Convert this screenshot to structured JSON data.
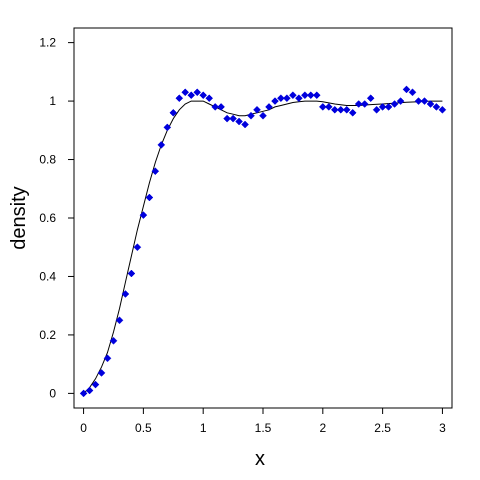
{
  "chart_data": {
    "type": "scatter",
    "xlabel": "x",
    "ylabel": "density",
    "xlim": [
      -0.08,
      3.08
    ],
    "ylim": [
      -0.05,
      1.25
    ],
    "xticks": [
      0,
      0.5,
      1,
      1.5,
      2,
      2.5,
      3
    ],
    "xtick_labels": [
      "0",
      "0.5",
      "1",
      "1.5",
      "2",
      "2.5",
      "3"
    ],
    "yticks": [
      0,
      0.2,
      0.4,
      0.6,
      0.8,
      1,
      1.2
    ],
    "ytick_labels": [
      "0",
      "0.2",
      "0.4",
      "0.6",
      "0.8",
      "1",
      "1.2"
    ],
    "grid": false,
    "legend": "none",
    "series": [
      {
        "kind": "points",
        "color": "#0000dd",
        "marker": "diamond",
        "x": [
          0.0,
          0.05,
          0.1,
          0.15,
          0.2,
          0.25,
          0.3,
          0.35,
          0.4,
          0.45,
          0.5,
          0.55,
          0.6,
          0.65,
          0.7,
          0.75,
          0.8,
          0.85,
          0.9,
          0.95,
          1.0,
          1.05,
          1.1,
          1.15,
          1.2,
          1.25,
          1.3,
          1.35,
          1.4,
          1.45,
          1.5,
          1.55,
          1.6,
          1.65,
          1.7,
          1.75,
          1.8,
          1.85,
          1.9,
          1.95,
          2.0,
          2.05,
          2.1,
          2.15,
          2.2,
          2.25,
          2.3,
          2.35,
          2.4,
          2.45,
          2.5,
          2.55,
          2.6,
          2.65,
          2.7,
          2.75,
          2.8,
          2.85,
          2.9,
          2.95,
          3.0
        ],
        "y": [
          0.0,
          0.01,
          0.03,
          0.07,
          0.12,
          0.18,
          0.25,
          0.34,
          0.41,
          0.5,
          0.61,
          0.67,
          0.76,
          0.85,
          0.91,
          0.96,
          1.01,
          1.03,
          1.02,
          1.03,
          1.02,
          1.01,
          0.98,
          0.98,
          0.94,
          0.94,
          0.93,
          0.92,
          0.95,
          0.97,
          0.95,
          0.98,
          1.0,
          1.01,
          1.01,
          1.02,
          1.01,
          1.02,
          1.02,
          1.02,
          0.98,
          0.98,
          0.97,
          0.97,
          0.97,
          0.96,
          0.99,
          0.99,
          1.01,
          0.97,
          0.98,
          0.98,
          0.99,
          1.0,
          1.04,
          1.03,
          1.0,
          1.0,
          0.99,
          0.98,
          0.97
        ]
      },
      {
        "kind": "line",
        "color": "#000000",
        "x": [
          0.0,
          0.05,
          0.1,
          0.15,
          0.2,
          0.25,
          0.3,
          0.35,
          0.4,
          0.45,
          0.5,
          0.55,
          0.6,
          0.65,
          0.7,
          0.75,
          0.8,
          0.85,
          0.9,
          0.95,
          1.0,
          1.05,
          1.1,
          1.15,
          1.2,
          1.25,
          1.3,
          1.35,
          1.4,
          1.45,
          1.5,
          1.55,
          1.6,
          1.65,
          1.7,
          1.75,
          1.8,
          1.85,
          1.9,
          1.95,
          2.0,
          2.1,
          2.2,
          2.3,
          2.4,
          2.5,
          2.6,
          2.7,
          2.8,
          2.9,
          3.0
        ],
        "y": [
          0.0,
          0.02,
          0.05,
          0.09,
          0.14,
          0.21,
          0.29,
          0.38,
          0.47,
          0.56,
          0.64,
          0.72,
          0.79,
          0.85,
          0.9,
          0.94,
          0.97,
          0.99,
          1.0,
          1.0,
          1.0,
          0.99,
          0.98,
          0.97,
          0.96,
          0.955,
          0.95,
          0.95,
          0.955,
          0.96,
          0.965,
          0.97,
          0.98,
          0.985,
          0.99,
          0.995,
          0.998,
          1.0,
          1.0,
          1.0,
          0.998,
          0.99,
          0.985,
          0.985,
          0.988,
          0.99,
          0.993,
          0.996,
          0.998,
          1.0,
          1.0
        ]
      }
    ]
  }
}
